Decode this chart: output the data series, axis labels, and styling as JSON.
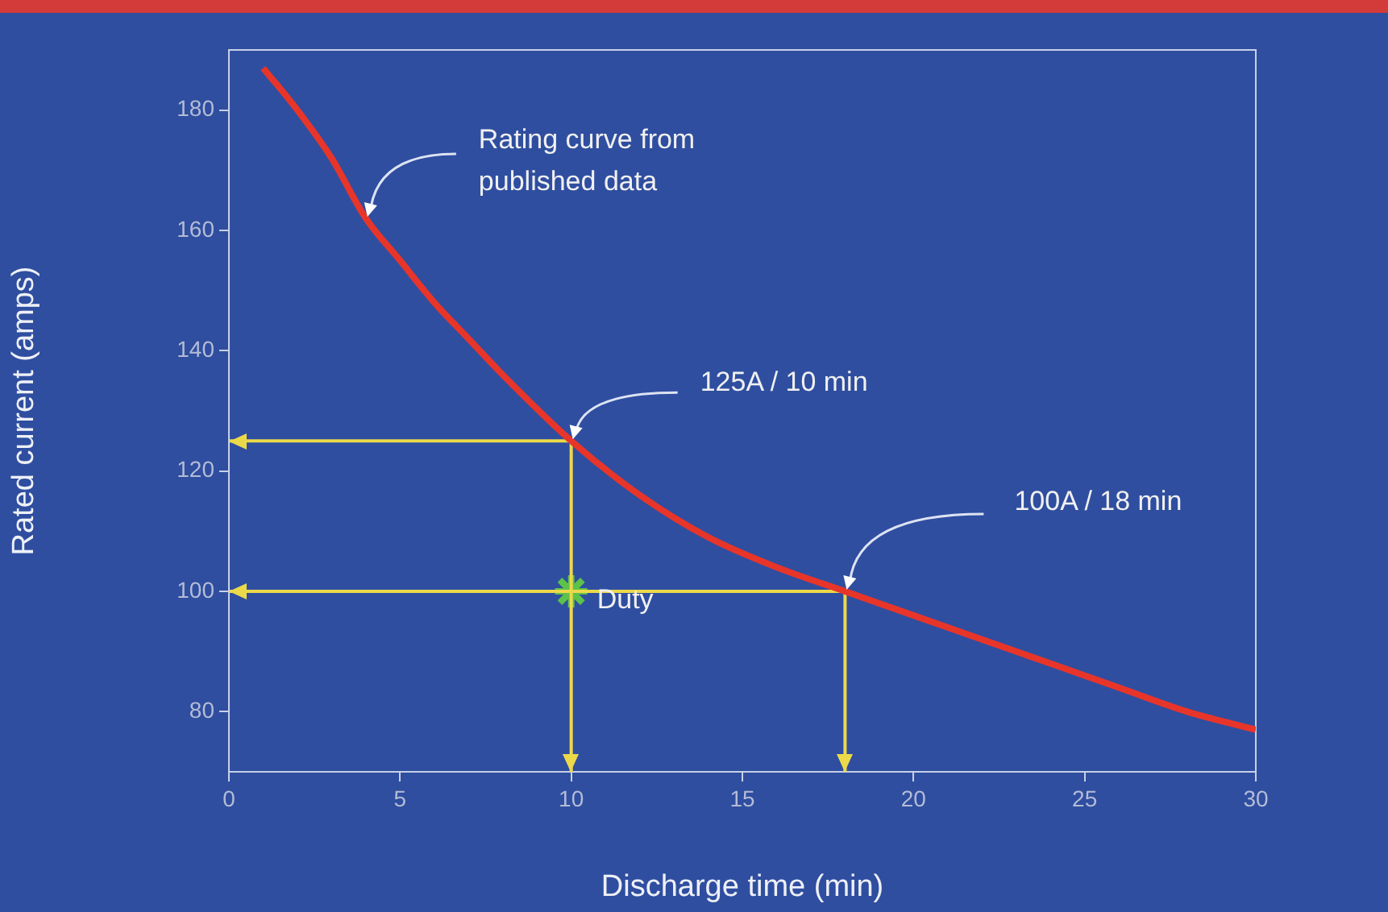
{
  "chart_data": {
    "type": "line",
    "xlabel": "Discharge time (min)",
    "ylabel": "Rated current (amps)",
    "xlim": [
      0,
      30
    ],
    "xticks": [
      0,
      5,
      10,
      15,
      20,
      25,
      30
    ],
    "ylim": [
      70,
      190
    ],
    "yticks": [
      80,
      100,
      120,
      140,
      160,
      180
    ],
    "grid": false,
    "legend": false,
    "marker": "none",
    "line_style": "solid",
    "series": [
      {
        "color": "#e8352a",
        "x": [
          1,
          2,
          3,
          4,
          5,
          6,
          7,
          8,
          10,
          12,
          14,
          16,
          18,
          20,
          22,
          24,
          26,
          28,
          30
        ],
        "values": [
          187,
          180,
          172,
          162,
          155,
          148,
          142,
          136,
          125,
          116,
          109,
          104,
          100,
          96,
          92,
          88,
          84,
          80,
          77
        ]
      },
      {
        "color": "#ecd94a",
        "x": [
          0,
          10,
          10
        ],
        "values": [
          125,
          125,
          70
        ]
      },
      {
        "color": "#ecd94a",
        "x": [
          0,
          18,
          18
        ],
        "values": [
          100,
          100,
          70
        ]
      },
      {
        "type": "scatter",
        "color": "#5cc24a",
        "marker": "cross",
        "x": [
          10
        ],
        "values": [
          100
        ]
      }
    ],
    "annotations": [
      {
        "text": "Rating curve from published data",
        "x": 4,
        "y": 162
      },
      {
        "text": "125A / 10 min",
        "x": 10,
        "y": 125
      },
      {
        "text": "100A / 18 min",
        "x": 18,
        "y": 100
      },
      {
        "text": "Duty",
        "x": 10,
        "y": 100
      }
    ]
  }
}
